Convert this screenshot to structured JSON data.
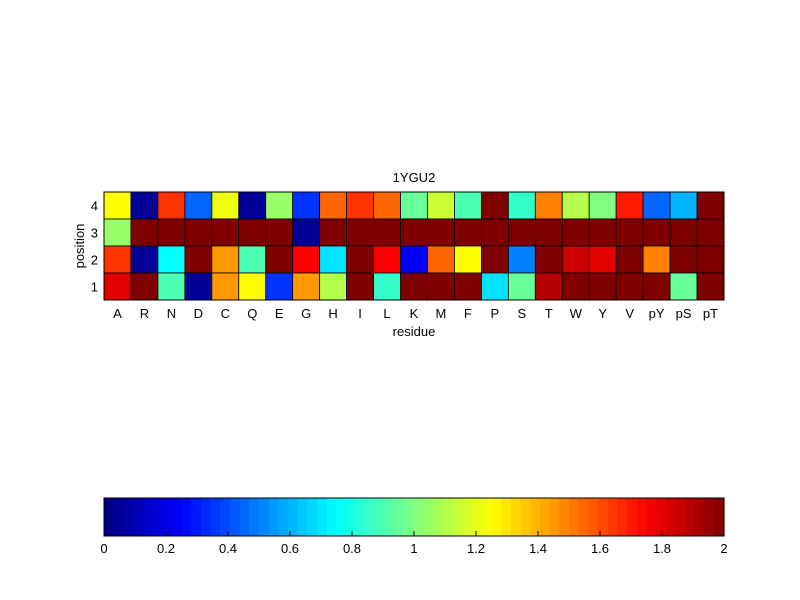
{
  "chart_data": [
    {
      "type": "heatmap",
      "title": "1YGU2",
      "xlabel": "residue",
      "ylabel": "position",
      "x_categories": [
        "A",
        "R",
        "N",
        "D",
        "C",
        "Q",
        "E",
        "G",
        "H",
        "I",
        "L",
        "K",
        "M",
        "F",
        "P",
        "S",
        "T",
        "W",
        "Y",
        "V",
        "pY",
        "pS",
        "pT"
      ],
      "y_categories": [
        "4",
        "3",
        "2",
        "1"
      ],
      "clim": [
        0,
        2
      ],
      "colormap": "jet",
      "values": [
        [
          1.25,
          0.05,
          1.65,
          0.45,
          1.22,
          0.05,
          1.05,
          0.35,
          1.55,
          1.65,
          1.55,
          0.95,
          1.15,
          0.9,
          2.0,
          0.85,
          1.5,
          1.1,
          1.0,
          1.7,
          0.45,
          0.6,
          2.0
        ],
        [
          1.05,
          2.0,
          2.0,
          2.0,
          2.0,
          2.0,
          2.0,
          0.05,
          2.0,
          2.0,
          2.0,
          2.0,
          2.0,
          2.0,
          2.0,
          2.0,
          2.0,
          2.0,
          2.0,
          2.0,
          2.0,
          2.0,
          2.0
        ],
        [
          1.65,
          0.05,
          0.75,
          2.0,
          1.45,
          0.9,
          2.0,
          1.75,
          0.7,
          2.0,
          1.75,
          0.25,
          1.55,
          1.25,
          2.0,
          0.5,
          2.0,
          1.85,
          1.8,
          2.0,
          1.5,
          2.0,
          2.0
        ],
        [
          1.8,
          2.0,
          0.9,
          0.05,
          1.45,
          1.25,
          0.35,
          1.45,
          1.1,
          2.0,
          0.85,
          2.0,
          2.0,
          2.0,
          0.7,
          0.95,
          1.9,
          2.0,
          2.0,
          2.0,
          2.0,
          0.95,
          2.0
        ]
      ]
    },
    {
      "type": "colorbar",
      "ticks": [
        0,
        0.2,
        0.4,
        0.6,
        0.8,
        1,
        1.2,
        1.4,
        1.6,
        1.8,
        2
      ],
      "tick_labels": [
        "0",
        "0.2",
        "0.4",
        "0.6",
        "0.8",
        "1",
        "1.2",
        "1.4",
        "1.6",
        "1.8",
        "2"
      ],
      "range": [
        0,
        2
      ],
      "levels": 64
    }
  ]
}
